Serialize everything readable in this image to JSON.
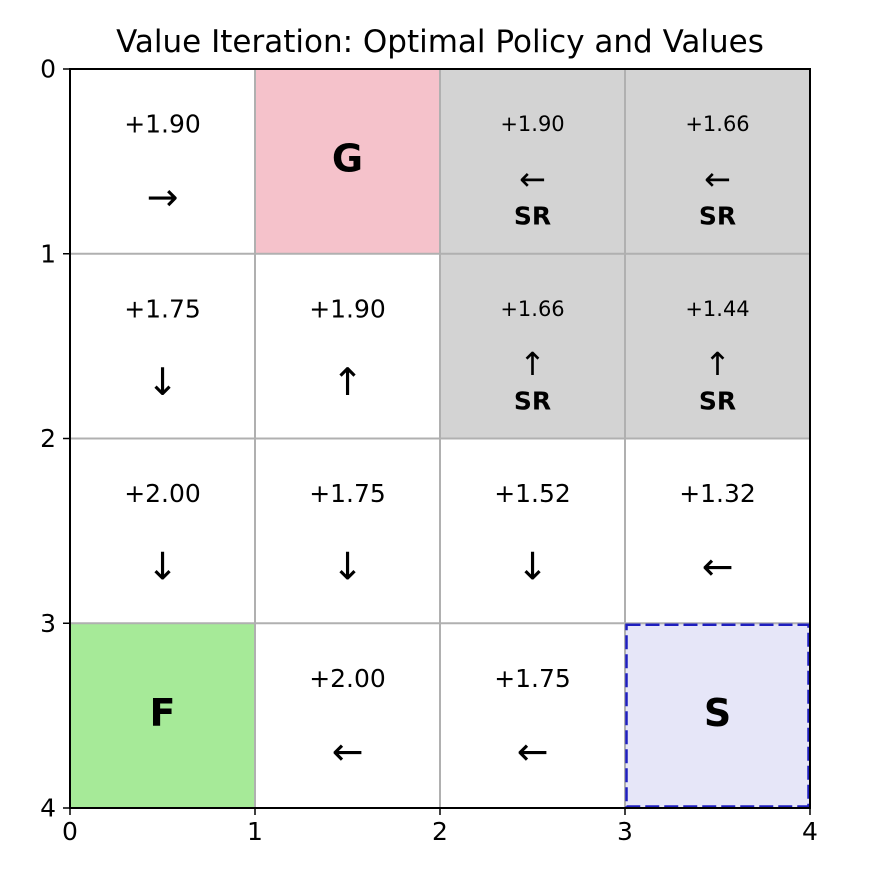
{
  "chart_data": {
    "type": "heatmap",
    "title": "Value Iteration: Optimal Policy and Values",
    "xlim": [
      0,
      4
    ],
    "ylim": [
      4,
      0
    ],
    "x_ticks": [
      "0",
      "1",
      "2",
      "3",
      "4"
    ],
    "y_ticks": [
      "0",
      "1",
      "2",
      "3",
      "4"
    ],
    "grid": true,
    "colors": {
      "goal": "#f5c2cb",
      "special_region": "#d3d3d3",
      "food": "#a6ea98",
      "start": "#e6e6f8",
      "start_border": "#1f1fbf",
      "grid": "#b0b0b0"
    },
    "cells": [
      {
        "row": 0,
        "col": 0,
        "value": "+1.90",
        "arrow": "→"
      },
      {
        "row": 0,
        "col": 1,
        "label": "G",
        "kind": "goal"
      },
      {
        "row": 0,
        "col": 2,
        "value": "+1.90",
        "arrow": "←",
        "tag": "SR",
        "kind": "special_region"
      },
      {
        "row": 0,
        "col": 3,
        "value": "+1.66",
        "arrow": "←",
        "tag": "SR",
        "kind": "special_region"
      },
      {
        "row": 1,
        "col": 0,
        "value": "+1.75",
        "arrow": "↓"
      },
      {
        "row": 1,
        "col": 1,
        "value": "+1.90",
        "arrow": "↑"
      },
      {
        "row": 1,
        "col": 2,
        "value": "+1.66",
        "arrow": "↑",
        "tag": "SR",
        "kind": "special_region"
      },
      {
        "row": 1,
        "col": 3,
        "value": "+1.44",
        "arrow": "↑",
        "tag": "SR",
        "kind": "special_region"
      },
      {
        "row": 2,
        "col": 0,
        "value": "+2.00",
        "arrow": "↓"
      },
      {
        "row": 2,
        "col": 1,
        "value": "+1.75",
        "arrow": "↓"
      },
      {
        "row": 2,
        "col": 2,
        "value": "+1.52",
        "arrow": "↓"
      },
      {
        "row": 2,
        "col": 3,
        "value": "+1.32",
        "arrow": "←"
      },
      {
        "row": 3,
        "col": 0,
        "label": "F",
        "kind": "food"
      },
      {
        "row": 3,
        "col": 1,
        "value": "+2.00",
        "arrow": "←"
      },
      {
        "row": 3,
        "col": 2,
        "value": "+1.75",
        "arrow": "←"
      },
      {
        "row": 3,
        "col": 3,
        "label": "S",
        "kind": "start"
      }
    ]
  }
}
